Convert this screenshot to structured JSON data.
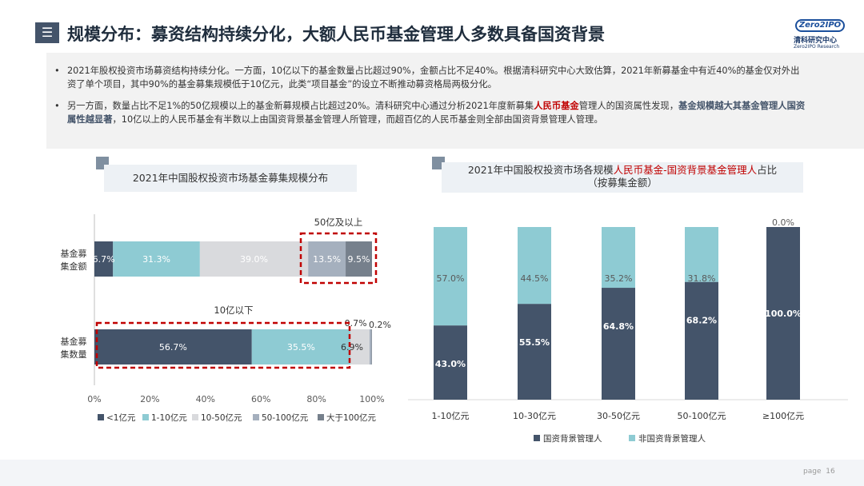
{
  "header": {
    "title": "规模分布：募资结构持续分化，大额人民币基金管理人多数具备国资背景",
    "icon": "menu-icon"
  },
  "logo": {
    "mark": "Zero2IPO",
    "cn": "清科研究中心",
    "en": "Zero2IPO Research"
  },
  "summary": {
    "bullet1": "2021年股权投资市场募资结构持续分化。一方面，10亿以下的基金数量占比超过90%，金额占比不足40%。根据清科研究中心大致估算，2021年新募基金中有近40%的基金仅对外出资了单个项目，其中90%的基金募集规模低于10亿元，此类“项目基金”的设立不断推动募资格局两极分化。",
    "bullet2_a": "另一方面，数量占比不足1%的50亿规模以上的基金新募规模占比超过20%。清科研究中心通过分析2021年度新募集",
    "bullet2_hl_red": "人民币基金",
    "bullet2_b": "管理人的国资属性发现，",
    "bullet2_hl_blue": "基金规模越大其基金管理人国资属性越显著",
    "bullet2_c": "，10亿以上的人民币基金有半数以上由国资背景基金管理人所管理，而超百亿的人民币基金则全部由国资背景管理人管理。"
  },
  "left_chart_title": "2021年中国股权投资市场基金募集规模分布",
  "right_chart_title": {
    "a": "2021年中国股权投资市场各规模",
    "red": "人民币基金-国资背景基金管理人",
    "b": "占比",
    "line2": "（按募集金额）"
  },
  "chart_data": [
    {
      "type": "bar",
      "orientation": "horizontal",
      "stacked": true,
      "categories": [
        "基金募集金额",
        "基金募集数量"
      ],
      "category_labels": [
        [
          "基金募",
          "集金额"
        ],
        [
          "基金募",
          "集数量"
        ]
      ],
      "series": [
        {
          "name": "<1亿元",
          "color": "#44546a",
          "values": [
            6.7,
            56.7
          ],
          "labels": [
            "6.7%",
            "56.7%"
          ]
        },
        {
          "name": "1-10亿元",
          "color": "#8ecbd3",
          "values": [
            31.3,
            35.5
          ],
          "labels": [
            "31.3%",
            "35.5%"
          ]
        },
        {
          "name": "10-50亿元",
          "color": "#d9dadd",
          "values": [
            39.0,
            6.9
          ],
          "labels": [
            "39.0%",
            "6.9%"
          ]
        },
        {
          "name": "50-100亿元",
          "color": "#a5b0be",
          "values": [
            13.5,
            0.7
          ],
          "labels": [
            "13.5%",
            "0.7%"
          ]
        },
        {
          "name": "大于100亿元",
          "color": "#76808c",
          "values": [
            9.5,
            0.2
          ],
          "labels": [
            "9.5%",
            "0.2%"
          ]
        }
      ],
      "xlim": [
        0,
        100
      ],
      "x_ticks": [
        "0%",
        "20%",
        "40%",
        "60%",
        "80%",
        "100%"
      ],
      "annotations": [
        "50亿及以上",
        "10亿以下"
      ],
      "legend": "bottom"
    },
    {
      "type": "bar",
      "orientation": "vertical",
      "stacked": true,
      "categories": [
        "1-10亿元",
        "10-30亿元",
        "30-50亿元",
        "50-100亿元",
        "≥100亿元"
      ],
      "series": [
        {
          "name": "国资背景管理人",
          "color": "#44546a",
          "values": [
            43.0,
            55.5,
            64.8,
            68.2,
            100.0
          ],
          "labels": [
            "43.0%",
            "55.5%",
            "64.8%",
            "68.2%",
            "100.0%"
          ]
        },
        {
          "name": "非国资背景管理人",
          "color": "#8ecbd3",
          "values": [
            57.0,
            44.5,
            35.2,
            31.8,
            0.0
          ],
          "labels": [
            "57.0%",
            "44.5%",
            "35.2%",
            "31.8%",
            "0.0%"
          ]
        }
      ],
      "ylim": [
        0,
        100
      ],
      "legend": "bottom"
    }
  ],
  "footer": {
    "page_label": "page",
    "page_number": "16"
  }
}
